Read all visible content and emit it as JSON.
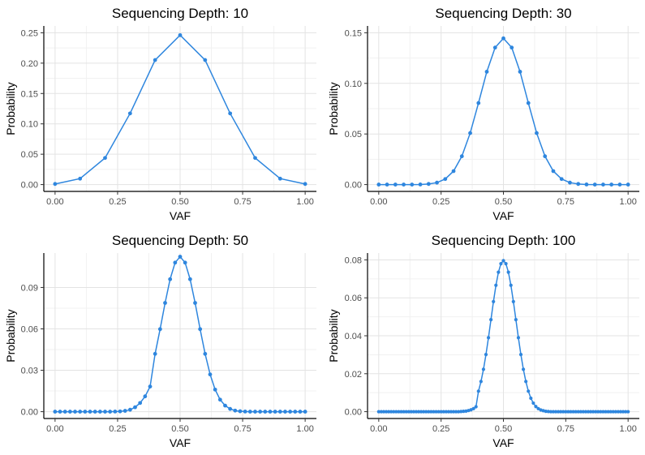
{
  "chart_data": [
    {
      "type": "line",
      "title": "Sequencing Depth: 10",
      "xlabel": "VAF",
      "ylabel": "Probability",
      "xlim": [
        0,
        1
      ],
      "ylim": [
        0,
        0.25
      ],
      "xticks": [
        0,
        0.25,
        0.5,
        0.75,
        1
      ],
      "xtick_labels": [
        "0.00",
        "0.25",
        "0.50",
        "0.75",
        "1.00"
      ],
      "yticks": [
        0,
        0.05,
        0.1,
        0.15,
        0.2,
        0.25
      ],
      "ytick_labels": [
        "0.00",
        "0.05",
        "0.10",
        "0.15",
        "0.20",
        "0.25"
      ],
      "grid": true,
      "color": "#2e86de",
      "depth": 10,
      "series": [
        {
          "x": [
            0,
            0.1,
            0.2,
            0.3,
            0.4,
            0.5,
            0.6,
            0.7,
            0.8,
            0.9,
            1
          ],
          "y": [
            0.001,
            0.0098,
            0.0439,
            0.1172,
            0.2051,
            0.2461,
            0.2051,
            0.1172,
            0.0439,
            0.0098,
            0.001
          ]
        }
      ]
    },
    {
      "type": "line",
      "title": "Sequencing Depth: 30",
      "xlabel": "VAF",
      "ylabel": "Probability",
      "xlim": [
        0,
        1
      ],
      "ylim": [
        0,
        0.15
      ],
      "xticks": [
        0,
        0.25,
        0.5,
        0.75,
        1
      ],
      "xtick_labels": [
        "0.00",
        "0.25",
        "0.50",
        "0.75",
        "1.00"
      ],
      "yticks": [
        0,
        0.05,
        0.1,
        0.15
      ],
      "ytick_labels": [
        "0.00",
        "0.05",
        "0.10",
        "0.15"
      ],
      "grid": true,
      "color": "#2e86de",
      "depth": 30,
      "series": [
        {
          "x": [
            0,
            0.0333,
            0.0667,
            0.1,
            0.1333,
            0.1667,
            0.2,
            0.2333,
            0.2667,
            0.3,
            0.3333,
            0.3667,
            0.4,
            0.4333,
            0.4667,
            0.5,
            0.5333,
            0.5667,
            0.6,
            0.6333,
            0.6667,
            0.7,
            0.7333,
            0.7667,
            0.8,
            0.8333,
            0.8667,
            0.9,
            0.9333,
            0.9667,
            1
          ],
          "y": [
            0,
            0,
            0,
            0,
            0,
            0.0001,
            0.0006,
            0.0019,
            0.0055,
            0.0133,
            0.028,
            0.0509,
            0.0806,
            0.1115,
            0.1354,
            0.1445,
            0.1354,
            0.1115,
            0.0806,
            0.0509,
            0.028,
            0.0133,
            0.0055,
            0.0019,
            0.0006,
            0.0001,
            0,
            0,
            0,
            0,
            0
          ]
        }
      ]
    },
    {
      "type": "line",
      "title": "Sequencing Depth: 50",
      "xlabel": "VAF",
      "ylabel": "Probability",
      "xlim": [
        0,
        1
      ],
      "ylim": [
        0,
        0.11
      ],
      "xticks": [
        0,
        0.25,
        0.5,
        0.75,
        1
      ],
      "xtick_labels": [
        "0.00",
        "0.25",
        "0.50",
        "0.75",
        "1.00"
      ],
      "yticks": [
        0,
        0.03,
        0.06,
        0.09
      ],
      "ytick_labels": [
        "0.00",
        "0.03",
        "0.06",
        "0.09"
      ],
      "grid": true,
      "color": "#2e86de",
      "depth": 50,
      "series": [
        {
          "x": [
            0,
            0.02,
            0.04,
            0.06,
            0.08,
            0.1,
            0.12,
            0.14,
            0.16,
            0.18,
            0.2,
            0.22,
            0.24,
            0.26,
            0.28,
            0.3,
            0.32,
            0.34,
            0.36,
            0.38,
            0.4,
            0.42,
            0.44,
            0.46,
            0.48,
            0.5,
            0.52,
            0.54,
            0.56,
            0.58,
            0.6,
            0.62,
            0.64,
            0.66,
            0.68,
            0.7,
            0.72,
            0.74,
            0.76,
            0.78,
            0.8,
            0.82,
            0.84,
            0.86,
            0.88,
            0.9,
            0.92,
            0.94,
            0.96,
            0.98,
            1
          ],
          "y": [
            0,
            0,
            0,
            0,
            0,
            0,
            0,
            0,
            0,
            0,
            0,
            0,
            0.0001,
            0.0002,
            0.0006,
            0.0014,
            0.0032,
            0.0063,
            0.0111,
            0.0182,
            0.0419,
            0.0598,
            0.0788,
            0.096,
            0.108,
            0.1123,
            0.108,
            0.096,
            0.0788,
            0.0598,
            0.0419,
            0.027,
            0.016,
            0.0087,
            0.0044,
            0.002,
            0.0008,
            0.0003,
            0.0001,
            0,
            0,
            0,
            0,
            0,
            0,
            0,
            0,
            0,
            0,
            0,
            0
          ]
        }
      ]
    },
    {
      "type": "line",
      "title": "Sequencing Depth: 100",
      "xlabel": "VAF",
      "ylabel": "Probability",
      "xlim": [
        0,
        1
      ],
      "ylim": [
        0,
        0.08
      ],
      "xticks": [
        0,
        0.25,
        0.5,
        0.75,
        1
      ],
      "xtick_labels": [
        "0.00",
        "0.25",
        "0.50",
        "0.75",
        "1.00"
      ],
      "yticks": [
        0,
        0.02,
        0.04,
        0.06,
        0.08
      ],
      "ytick_labels": [
        "0.00",
        "0.02",
        "0.04",
        "0.06",
        "0.08"
      ],
      "grid": true,
      "color": "#2e86de",
      "depth": 100,
      "series": [
        {
          "x": [
            0,
            0.01,
            0.02,
            0.03,
            0.04,
            0.05,
            0.06,
            0.07,
            0.08,
            0.09,
            0.1,
            0.11,
            0.12,
            0.13,
            0.14,
            0.15,
            0.16,
            0.17,
            0.18,
            0.19,
            0.2,
            0.21,
            0.22,
            0.23,
            0.24,
            0.25,
            0.26,
            0.27,
            0.28,
            0.29,
            0.3,
            0.31,
            0.32,
            0.33,
            0.34,
            0.35,
            0.36,
            0.37,
            0.38,
            0.39,
            0.4,
            0.41,
            0.42,
            0.43,
            0.44,
            0.45,
            0.46,
            0.47,
            0.48,
            0.49,
            0.5,
            0.51,
            0.52,
            0.53,
            0.54,
            0.55,
            0.56,
            0.57,
            0.58,
            0.59,
            0.6,
            0.61,
            0.62,
            0.63,
            0.64,
            0.65,
            0.66,
            0.67,
            0.68,
            0.69,
            0.7,
            0.71,
            0.72,
            0.73,
            0.74,
            0.75,
            0.76,
            0.77,
            0.78,
            0.79,
            0.8,
            0.81,
            0.82,
            0.83,
            0.84,
            0.85,
            0.86,
            0.87,
            0.88,
            0.89,
            0.9,
            0.91,
            0.92,
            0.93,
            0.94,
            0.95,
            0.96,
            0.97,
            0.98,
            0.99,
            1
          ],
          "y": [
            0,
            0,
            0,
            0,
            0,
            0,
            0,
            0,
            0,
            0,
            0,
            0,
            0,
            0,
            0,
            0,
            0,
            0,
            0,
            0,
            0,
            0,
            0,
            0,
            0,
            0,
            0,
            0,
            0,
            0,
            0,
            0,
            0,
            0.0001,
            0.0002,
            0.0003,
            0.0006,
            0.001,
            0.0016,
            0.0026,
            0.0108,
            0.0159,
            0.0223,
            0.0301,
            0.039,
            0.0485,
            0.058,
            0.0666,
            0.0735,
            0.078,
            0.0796,
            0.078,
            0.0735,
            0.0666,
            0.058,
            0.0485,
            0.039,
            0.0301,
            0.0223,
            0.0159,
            0.0108,
            0.0071,
            0.0045,
            0.0027,
            0.0016,
            0.0009,
            0.0005,
            0.0002,
            0.0001,
            0,
            0,
            0,
            0,
            0,
            0,
            0,
            0,
            0,
            0,
            0,
            0,
            0,
            0,
            0,
            0,
            0,
            0,
            0,
            0,
            0,
            0,
            0,
            0,
            0,
            0,
            0,
            0,
            0,
            0,
            0,
            0
          ]
        }
      ]
    }
  ]
}
